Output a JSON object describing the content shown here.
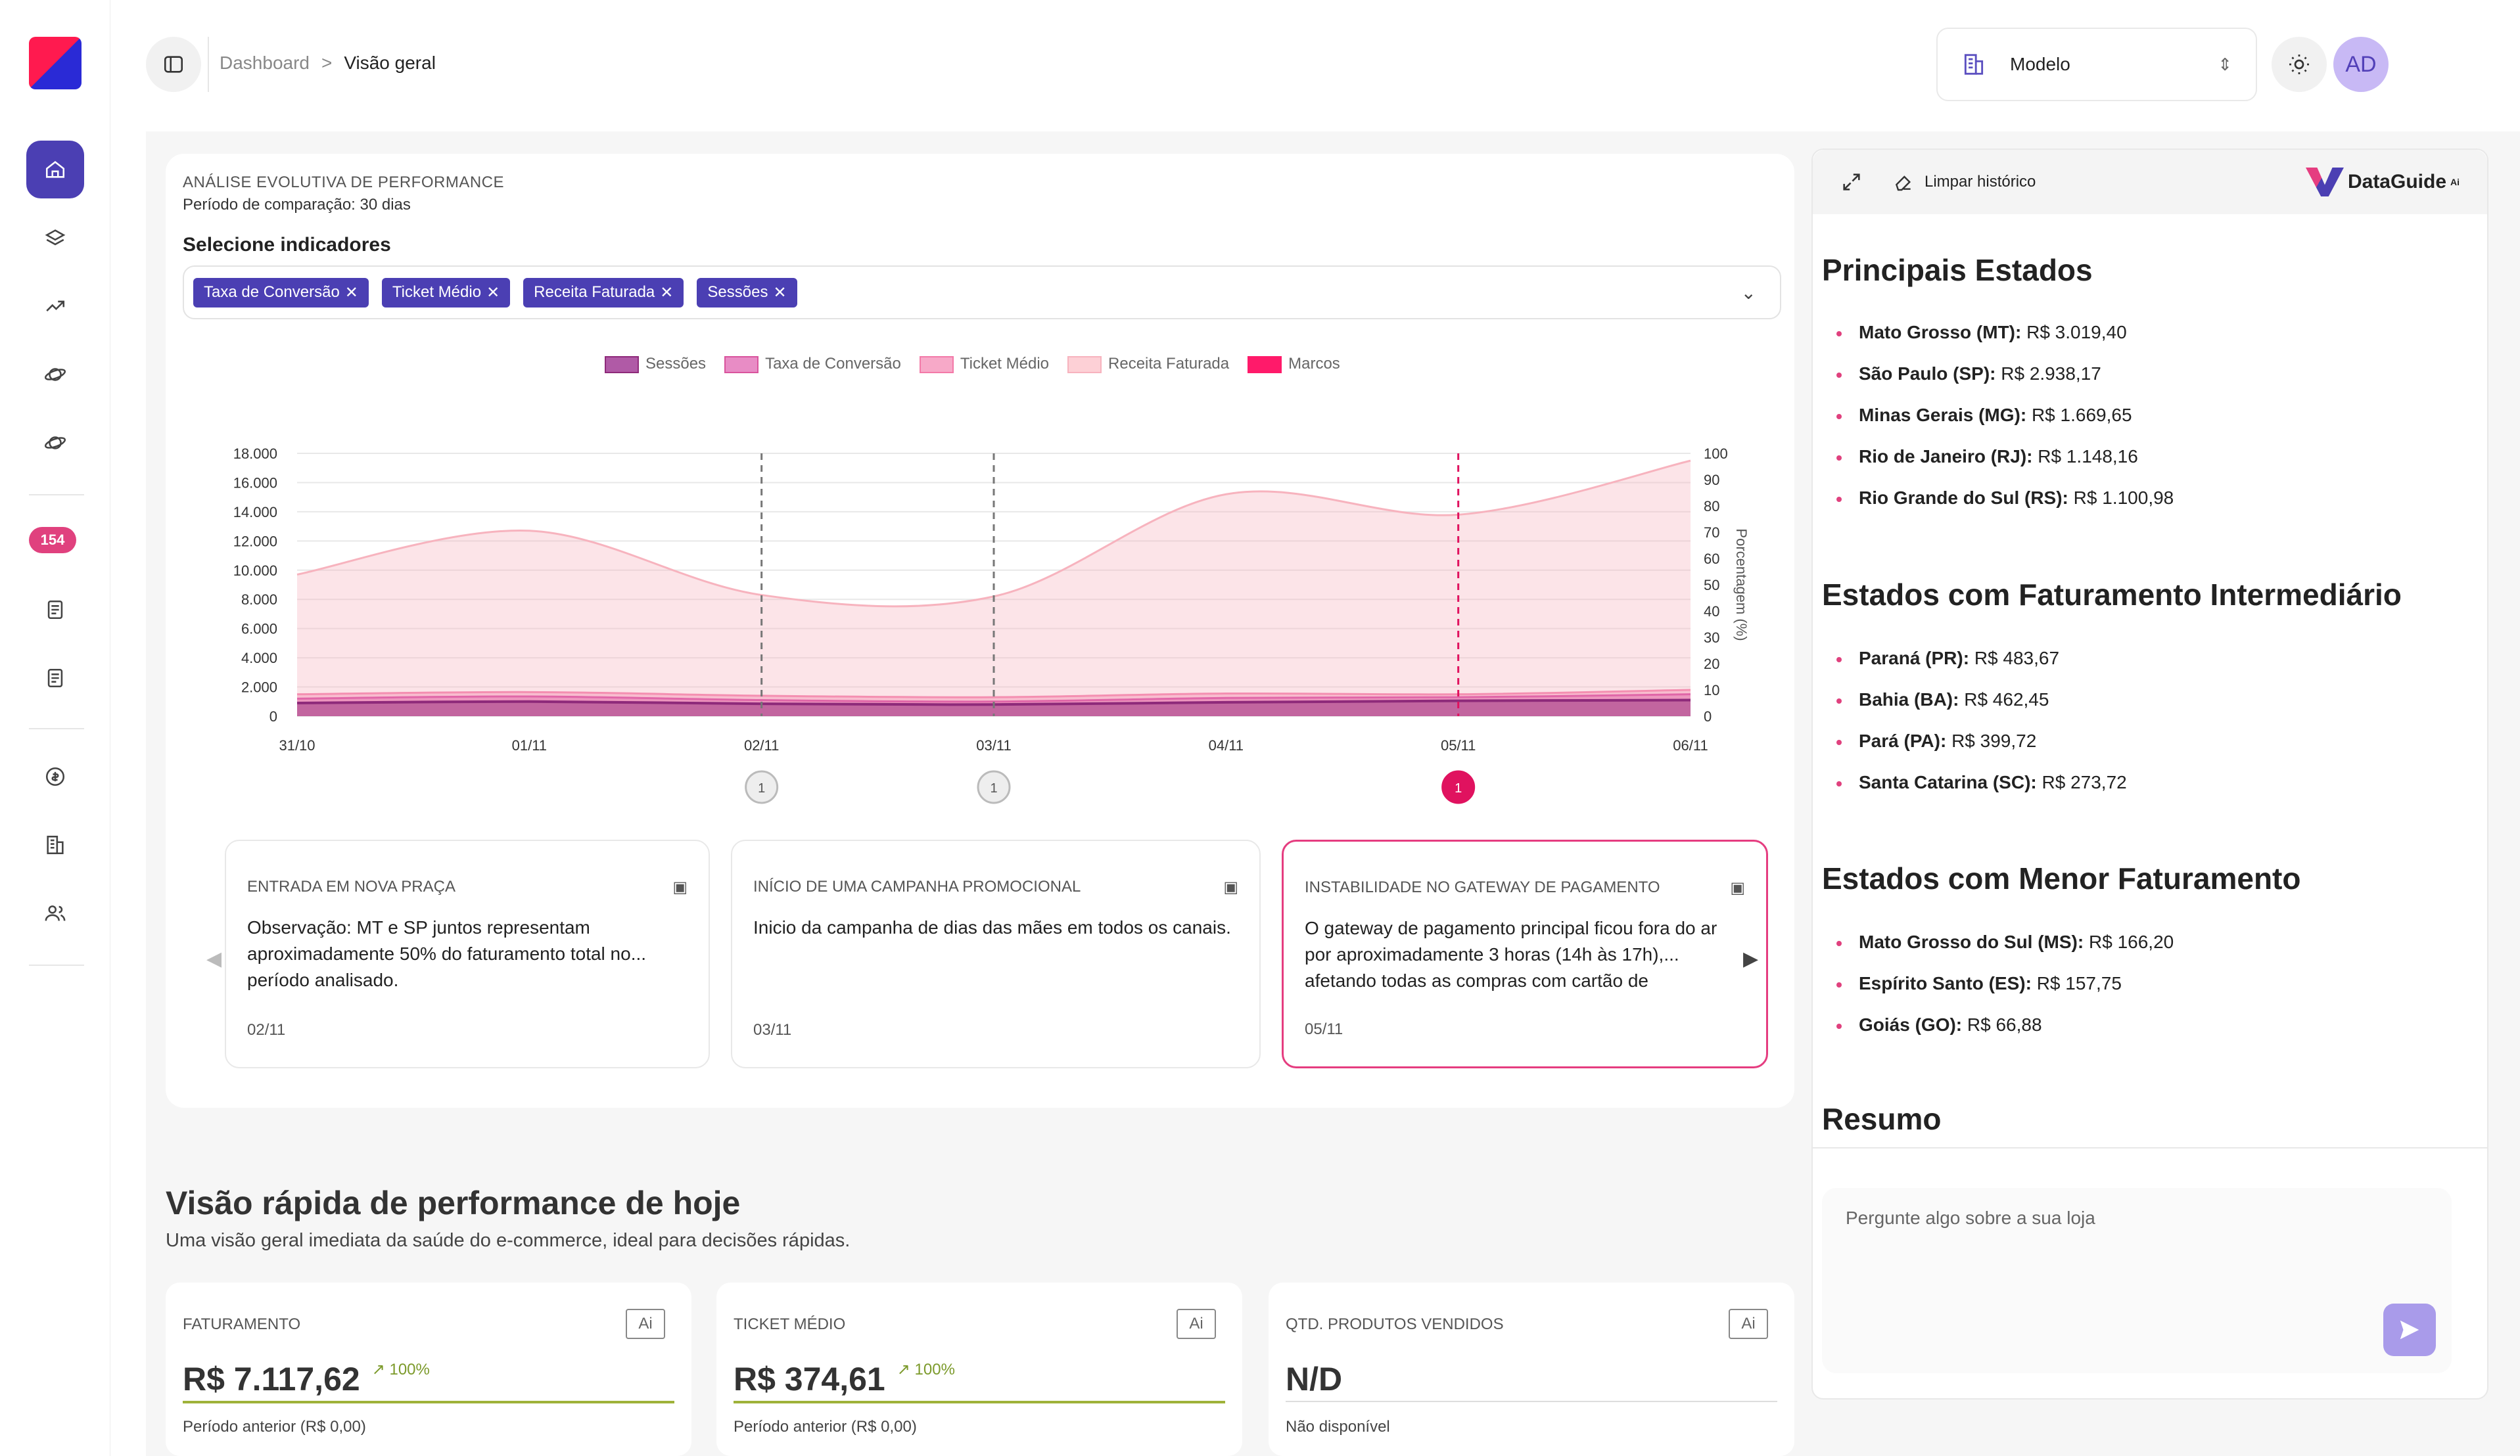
{
  "breadcrumb": {
    "root": "Dashboard",
    "sep": ">",
    "current": "Visão geral"
  },
  "model_selector": {
    "label": "Modelo"
  },
  "avatar": {
    "initials": "AD"
  },
  "sidebar": {
    "badge": "154"
  },
  "perf": {
    "caption": "ANÁLISE EVOLUTIVA DE PERFORMANCE",
    "period": "Período de comparação: 30 dias",
    "select_label": "Selecione indicadores",
    "chips": [
      "Taxa de Conversão",
      "Ticket Médio",
      "Receita Faturada",
      "Sessões"
    ]
  },
  "chart_data": {
    "type": "area",
    "legend": [
      "Sessões",
      "Taxa de Conversão",
      "Ticket Médio",
      "Receita Faturada",
      "Marcos"
    ],
    "x": [
      "31/10",
      "01/11",
      "02/11",
      "03/11",
      "04/11",
      "05/11",
      "06/11"
    ],
    "y_left_ticks": [
      "0",
      "2.000",
      "4.000",
      "6.000",
      "8.000",
      "10.000",
      "12.000",
      "14.000",
      "16.000",
      "18.000"
    ],
    "y_right_ticks": [
      "0",
      "10",
      "20",
      "30",
      "40",
      "50",
      "60",
      "70",
      "80",
      "90",
      "100"
    ],
    "y_right_label": "Porcentagem (%)",
    "ylim_left": [
      0,
      18000
    ],
    "ylim_right": [
      0,
      100
    ],
    "series": [
      {
        "name": "Receita Faturada",
        "values": [
          9700,
          12700,
          8300,
          8200,
          15200,
          13800,
          17500
        ],
        "color": "#f7b3be"
      },
      {
        "name": "Ticket Médio",
        "values": [
          1500,
          1650,
          1400,
          1300,
          1550,
          1500,
          1800
        ],
        "color": "#f48fb1"
      },
      {
        "name": "Taxa de Conversão",
        "values": [
          1200,
          1350,
          1100,
          1000,
          1250,
          1300,
          1500
        ],
        "color": "#e066a8"
      },
      {
        "name": "Sessões",
        "values": [
          900,
          1000,
          850,
          800,
          950,
          1050,
          1100
        ],
        "color": "#8e2a7a"
      }
    ],
    "markers": [
      {
        "x": "02/11",
        "count": "1",
        "active": false
      },
      {
        "x": "03/11",
        "count": "1",
        "active": false
      },
      {
        "x": "05/11",
        "count": "1",
        "active": true
      }
    ]
  },
  "events": [
    {
      "title": "ENTRADA EM NOVA PRAÇA",
      "body": "Observação: MT e SP juntos representam aproximadamente 50% do faturamento total no...",
      "body2": "período analisado.",
      "date": "02/11"
    },
    {
      "title": "INÍCIO DE UMA CAMPANHA PROMOCIONAL",
      "body": "Inicio da campanha de dias das mães em todos os canais.",
      "body2": "",
      "date": "03/11"
    },
    {
      "title": "INSTABILIDADE NO GATEWAY DE PAGAMENTO",
      "body": "O gateway de pagamento principal ficou fora do ar por aproximadamente 3 horas (14h às 17h),...",
      "body2": "afetando todas as compras com cartão de",
      "date": "05/11"
    }
  ],
  "quick": {
    "title": "Visão rápida de performance de hoje",
    "subtitle": "Uma visão geral imediata da saúde do e-commerce, ideal para decisões rápidas."
  },
  "kpis": [
    {
      "label": "FATURAMENTO",
      "value": "R$ 7.117,62",
      "pct": "100%",
      "prev": "Período anterior (R$ 0,00)"
    },
    {
      "label": "TICKET MÉDIO",
      "value": "R$ 374,61",
      "pct": "100%",
      "prev": "Período anterior (R$ 0,00)"
    },
    {
      "label": "QTD. PRODUTOS VENDIDOS",
      "value": "N/D",
      "pct": "",
      "prev": "Não disponível"
    }
  ],
  "ai_badge": "Ai",
  "chat": {
    "clear_label": "Limpar histórico",
    "brand": "DataGuide",
    "brand_sup": "Ai",
    "sections": [
      {
        "title": "Principais Estados",
        "items": [
          {
            "name": "Mato Grosso (MT):",
            "value": "R$ 3.019,40"
          },
          {
            "name": "São Paulo (SP):",
            "value": "R$ 2.938,17"
          },
          {
            "name": "Minas Gerais (MG):",
            "value": "R$ 1.669,65"
          },
          {
            "name": "Rio de Janeiro (RJ):",
            "value": "R$ 1.148,16"
          },
          {
            "name": "Rio Grande do Sul (RS):",
            "value": "R$ 1.100,98"
          }
        ]
      },
      {
        "title": "Estados com Faturamento Intermediário",
        "items": [
          {
            "name": "Paraná (PR):",
            "value": "R$ 483,67"
          },
          {
            "name": "Bahia (BA):",
            "value": "R$ 462,45"
          },
          {
            "name": "Pará (PA):",
            "value": "R$ 399,72"
          },
          {
            "name": "Santa Catarina (SC):",
            "value": "R$ 273,72"
          }
        ]
      },
      {
        "title": "Estados com Menor Faturamento",
        "items": [
          {
            "name": "Mato Grosso do Sul (MS):",
            "value": "R$ 166,20"
          },
          {
            "name": "Espírito Santo (ES):",
            "value": "R$ 157,75"
          },
          {
            "name": "Goiás (GO):",
            "value": "R$ 66,88"
          }
        ]
      }
    ],
    "summary_title": "Resumo",
    "placeholder": "Pergunte algo sobre a sua loja"
  }
}
